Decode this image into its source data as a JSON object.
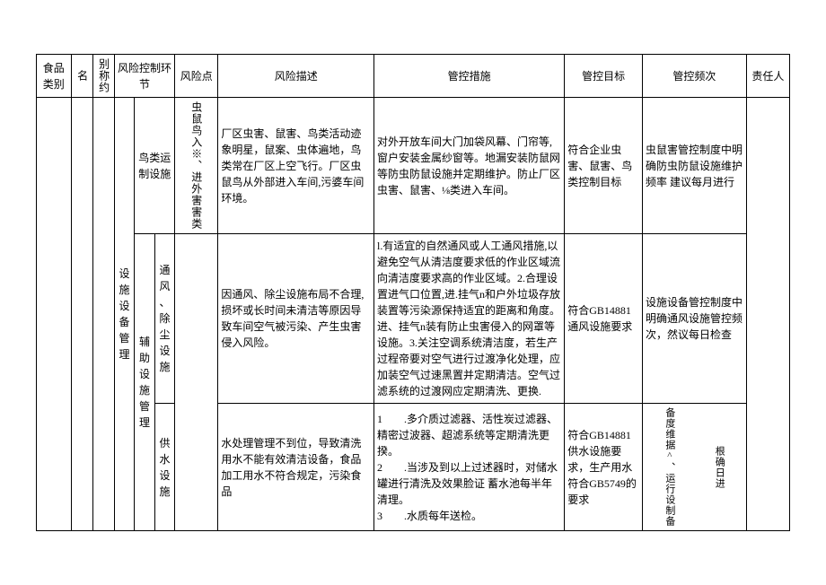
{
  "headers": {
    "food_category": "食品类别",
    "name": "名",
    "alias": "别称约",
    "env": "风险控制环节",
    "risk_point": "风险点",
    "risk_desc": "风险描述",
    "measure": "管控措施",
    "target": "管控目标",
    "freq": "管控频次",
    "responsible": "责任人"
  },
  "env_main": "设施设备管理",
  "rows": [
    {
      "env_sub": "鸟类运制设施",
      "risk_point": "虫鼠鸟入※、进外害害类",
      "risk_desc": "厂区虫害、鼠害、鸟类活动迹象明星，鼠案、虫体遍地，鸟类常在厂区上空飞行。厂区虫鼠鸟从外部进入车间,污婆车间环境。",
      "measure": "对外开放车间大门加袋风幕、门帘等,窗户安装金属纱窗等。地漏安装防鼠网等防虫防鼠设施并定期维护。防止厂区虫害、鼠害、⅛类进入车间。",
      "target": "符合企业虫害、鼠害、鸟类控制目标",
      "freq": "虫鼠害管控制度中明确防虫防鼠设施维护频率 建议每月进行"
    },
    {
      "env_sub_group": "辅助设施管理",
      "env_sub": "通风、除尘设施",
      "risk_desc": "因通风、除尘设施布局不合理,损坏或长时间未清洁等原因导致车间空气被污染、产生虫害侵入风险。",
      "measure": "l.有适宜的自然通风或人工通风措施,以避免空气从清洁度要求低的作业区域流向清洁度要求高的作业区域。2.合理设置进气口位置,进.挂气n和户外垃圾存放装置等污染源保持适宜的距离和角度。进、挂气n装有防止虫害侵入的网罩等设施。3.关注空调系统清洁度，若生产过程帝要对空气进行过渡净化处理，应加装空气过速黑置并定期清洁。空气过滤系统的过渡网应定期清洗、更换.",
      "target": "符合GB14881通风设施要求",
      "freq": "设施设备管控制度中明确通风设施管控频次，然议每日检查"
    },
    {
      "env_sub": "供水设施",
      "risk_desc": "水处理管理不到位，导致清洗用水不能有效清洁设备，食品加工用水不符合规定，污染食品",
      "measure": "1　　.多介质过滤器、活性炭过滤器、精密过波器、超滤系统等定期清洗更揆。\n2　　.当涉及到以上过述器时，对储水罐进行清洗及效果脸证 蓄水池每半年清理。\n3　　.水质每年送检。",
      "target": "符合GB14881供水设施要求，生产用水符合GB5749的要求",
      "freq_special": [
        "备度维据^、运行设制备",
        "根确日进"
      ]
    }
  ]
}
